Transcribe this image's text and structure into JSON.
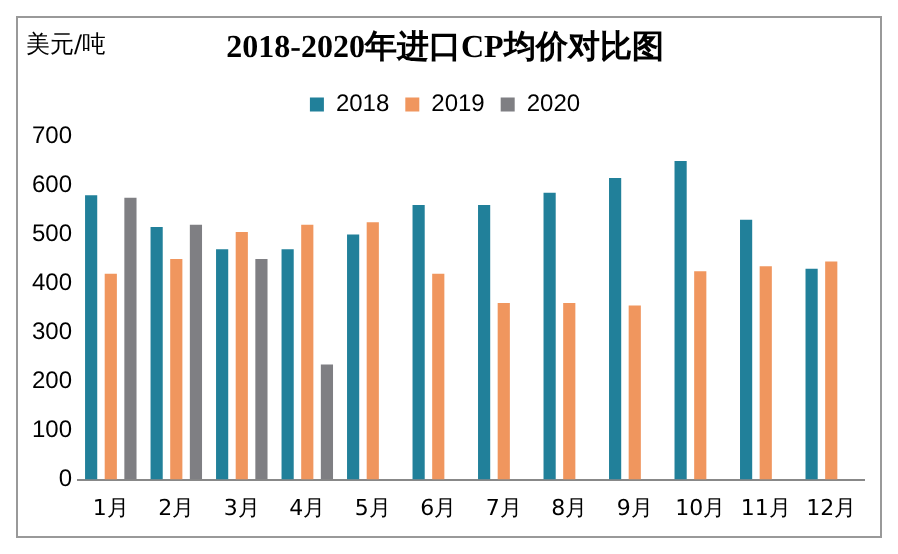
{
  "chart_data": {
    "type": "bar",
    "title": "2018-2020年进口CP均价对比图",
    "ylabel": "美元/吨",
    "categories": [
      "1月",
      "2月",
      "3月",
      "4月",
      "5月",
      "6月",
      "7月",
      "8月",
      "9月",
      "10月",
      "11月",
      "12月"
    ],
    "series": [
      {
        "name": "2018",
        "color": "#21809a",
        "values": [
          580,
          515,
          470,
          470,
          500,
          560,
          560,
          585,
          615,
          650,
          530,
          430
        ]
      },
      {
        "name": "2019",
        "color": "#f0965e",
        "values": [
          420,
          450,
          505,
          520,
          525,
          420,
          360,
          360,
          355,
          425,
          435,
          445
        ]
      },
      {
        "name": "2020",
        "color": "#7f7f83",
        "values": [
          575,
          520,
          450,
          235,
          null,
          null,
          null,
          null,
          null,
          null,
          null,
          null
        ]
      }
    ],
    "ylim": [
      0,
      700
    ],
    "yticks": [
      0,
      100,
      200,
      300,
      400,
      500,
      600,
      700
    ],
    "grid": false,
    "legend": "top"
  }
}
